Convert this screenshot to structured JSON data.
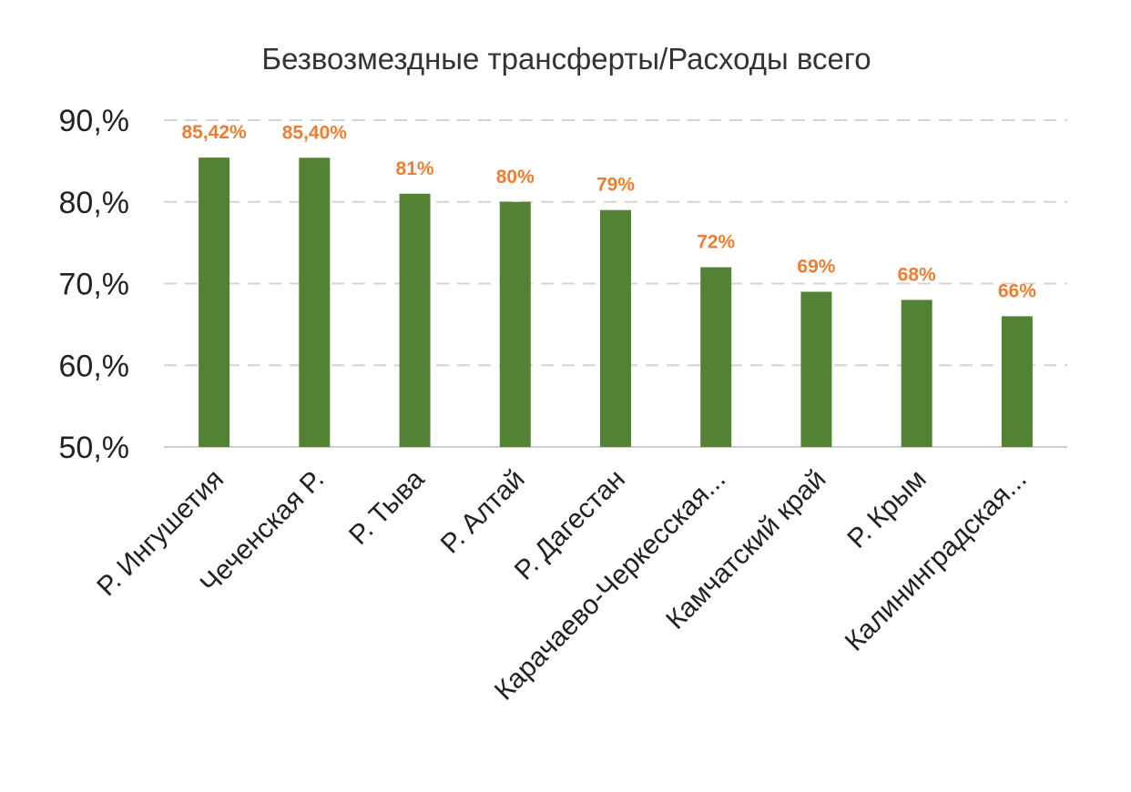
{
  "chart_data": {
    "type": "bar",
    "title": "Безвозмездные трансферты/Расходы всего",
    "xlabel": "",
    "ylabel": "",
    "categories": [
      "Р. Ингушетия",
      "Чеченская Р.",
      "Р. Тыва",
      "Р. Алтай",
      "Р. Дагестан",
      "Карачаево-Черкесская...",
      "Камчатский край",
      "Р. Крым",
      "Калининградская..."
    ],
    "values": [
      85.42,
      85.4,
      81,
      80,
      79,
      72,
      69,
      68,
      66
    ],
    "data_labels": [
      "85,42%",
      "85,40%",
      "81%",
      "80%",
      "79%",
      "72%",
      "69%",
      "68%",
      "66%"
    ],
    "ylim": [
      50,
      90
    ],
    "yticks": [
      50,
      60,
      70,
      80,
      90
    ],
    "ytick_labels": [
      "50,%",
      "60,%",
      "70,%",
      "80,%",
      "90,%"
    ],
    "grid": true,
    "legend": "none",
    "bar_color": "#548235",
    "label_color": "#ED7D31"
  }
}
